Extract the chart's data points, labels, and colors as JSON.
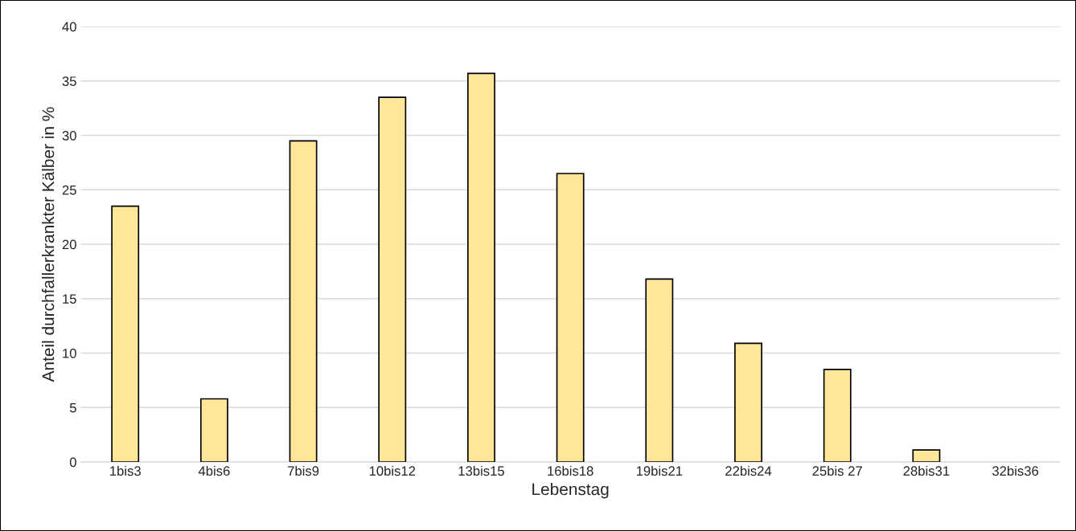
{
  "chart_data": {
    "type": "bar",
    "categories": [
      "1bis3",
      "4bis6",
      "7bis9",
      "10bis12",
      "13bis15",
      "16bis18",
      "19bis21",
      "22bis24",
      "25bis 27",
      "28bis31",
      "32bis36"
    ],
    "values": [
      23.5,
      5.8,
      29.5,
      33.5,
      35.7,
      26.5,
      16.8,
      10.9,
      8.5,
      1.1,
      null
    ],
    "color": "#ffe699",
    "xlabel": "Lebenstag",
    "ylabel": "Anteil durchfallerkrankter Kälber in %",
    "ylim": [
      0,
      40
    ],
    "yticks": [
      0,
      5,
      10,
      15,
      20,
      25,
      30,
      35,
      40
    ],
    "grid": "y"
  }
}
